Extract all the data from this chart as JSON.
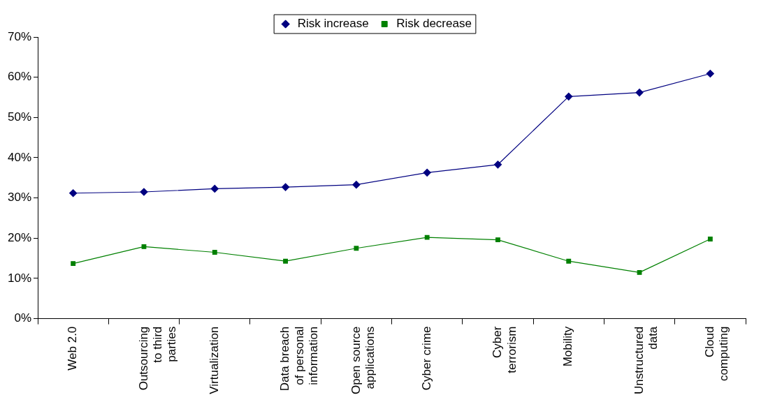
{
  "chart_data": {
    "type": "line",
    "categories": [
      "Web 2.0",
      "Outsourcing to third parties",
      "Virtualization",
      "Data breach of personal information",
      "Open source applications",
      "Cyber crime",
      "Cyber terrorism",
      "Mobility",
      "Unstructured data",
      "Cloud computing"
    ],
    "series": [
      {
        "name": "Risk increase",
        "color": "#000080",
        "marker": "diamond",
        "values": [
          31.2,
          31.5,
          32.3,
          32.7,
          33.3,
          36.3,
          38.3,
          55.2,
          56.2,
          60.9
        ]
      },
      {
        "name": "Risk decrease",
        "color": "#008000",
        "marker": "square",
        "values": [
          13.7,
          17.9,
          16.5,
          14.3,
          17.5,
          20.2,
          19.6,
          14.3,
          11.5,
          19.8
        ]
      }
    ],
    "ylim": [
      0,
      70
    ],
    "yticks": [
      {
        "value": 0,
        "label": "0%"
      },
      {
        "value": 10,
        "label": "10%"
      },
      {
        "value": 20,
        "label": "20%"
      },
      {
        "value": 30,
        "label": "30%"
      },
      {
        "value": 40,
        "label": "40%"
      },
      {
        "value": 50,
        "label": "50%"
      },
      {
        "value": 60,
        "label": "60%"
      },
      {
        "value": 70,
        "label": "70%"
      }
    ],
    "grid": false,
    "legend": "top",
    "line_style": "solid"
  }
}
